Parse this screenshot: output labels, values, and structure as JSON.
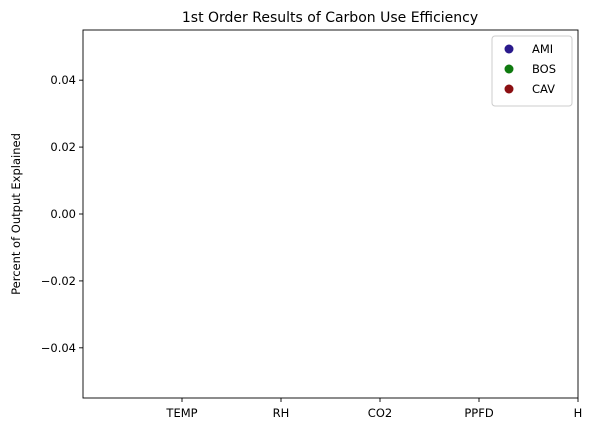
{
  "chart_data": {
    "type": "scatter",
    "title": "1st Order Results of Carbon Use Efficiency",
    "xlabel": "",
    "ylabel": "Percent of Output Explained",
    "categories": [
      "TEMP",
      "RH",
      "CO2",
      "PPFD",
      "H"
    ],
    "ylim": [
      -0.055,
      0.055
    ],
    "y_ticks": [
      "0.04",
      "0.02",
      "0.00",
      "−0.02",
      "−0.04"
    ],
    "grid": false,
    "legend_position": "upper-right",
    "series": [
      {
        "name": "AMI",
        "color": "#2a1a8c",
        "values": []
      },
      {
        "name": "BOS",
        "color": "#0f7a0f",
        "values": []
      },
      {
        "name": "CAV",
        "color": "#8b0f12",
        "values": []
      }
    ]
  }
}
